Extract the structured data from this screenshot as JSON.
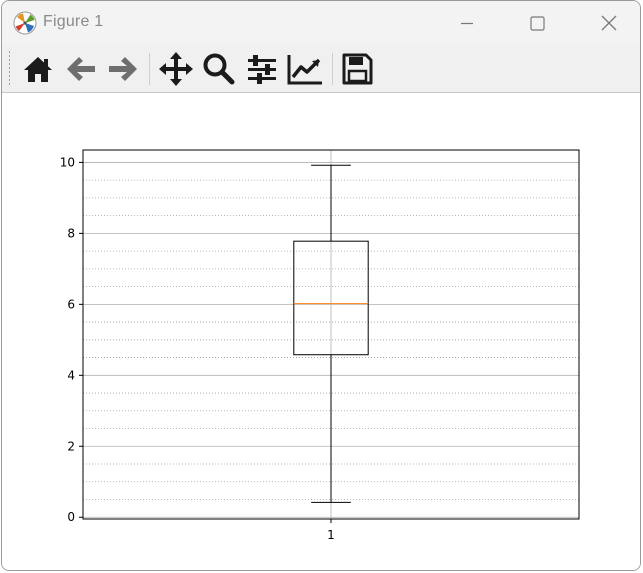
{
  "window": {
    "title": "Figure 1",
    "controls": {
      "minimize": "minimize",
      "maximize": "maximize",
      "close": "close"
    }
  },
  "toolbar": {
    "buttons": [
      {
        "id": "home",
        "icon": "home-icon"
      },
      {
        "id": "back",
        "icon": "arrow-left-icon"
      },
      {
        "id": "forward",
        "icon": "arrow-right-icon"
      },
      {
        "id": "pan",
        "icon": "move-icon"
      },
      {
        "id": "zoom",
        "icon": "magnifier-icon"
      },
      {
        "id": "subplots",
        "icon": "sliders-icon"
      },
      {
        "id": "axes",
        "icon": "line-chart-icon"
      },
      {
        "id": "save",
        "icon": "floppy-disk-icon"
      }
    ]
  },
  "colors": {
    "median": "#ff7f0e",
    "box": "#000000",
    "major_grid": "#b0b0b0",
    "minor_grid": "#a0a0a0"
  },
  "chart_data": {
    "type": "box",
    "title": "",
    "xlabel": "",
    "ylabel": "",
    "categories": [
      "1"
    ],
    "boxes": [
      {
        "label": "1",
        "whisker_low": 0.42,
        "q1": 4.58,
        "median": 6.02,
        "q3": 7.78,
        "whisker_high": 9.92
      }
    ],
    "ylim": [
      -0.05,
      10.35
    ],
    "yticks": [
      0,
      2,
      4,
      6,
      8,
      10
    ],
    "minor_grid_step": 0.5,
    "grid": true,
    "minor_grid": true,
    "legend": false
  }
}
